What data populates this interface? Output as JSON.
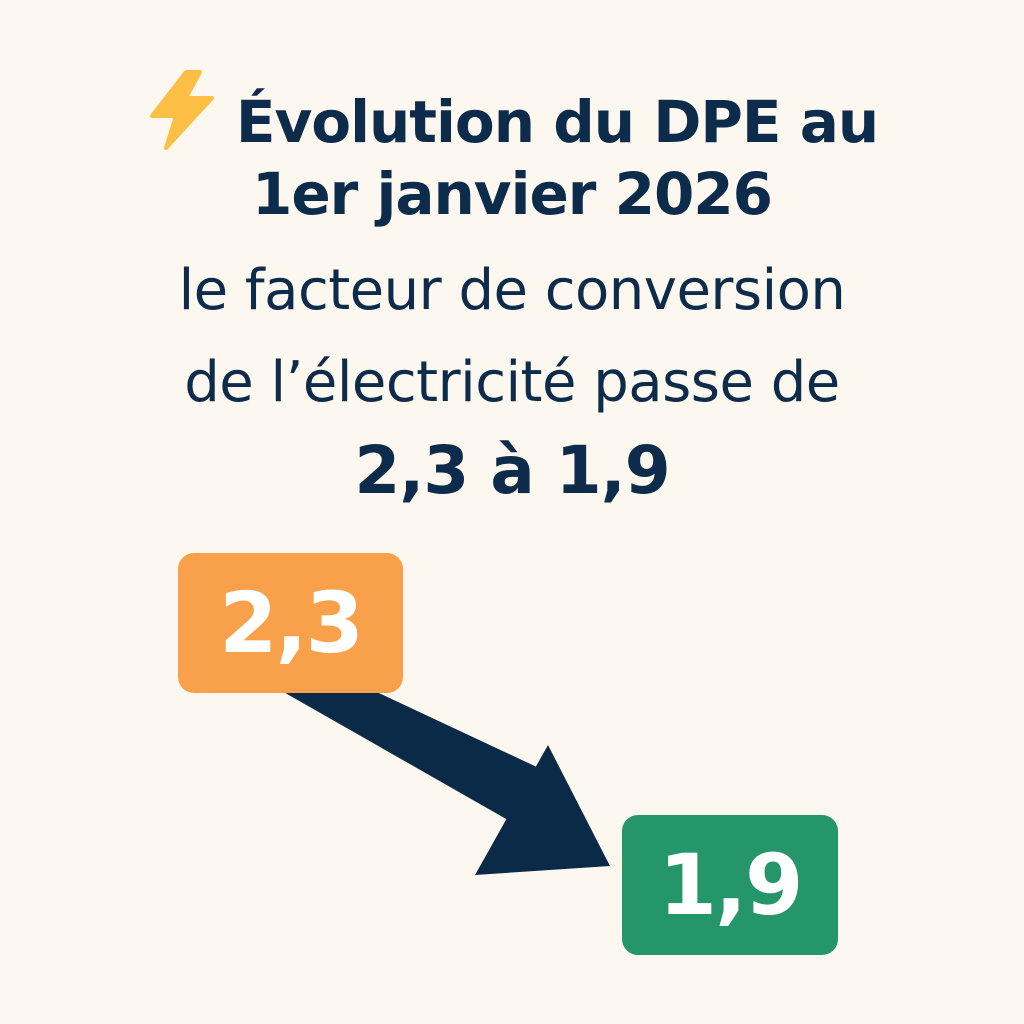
{
  "title": {
    "icon": "lightning-bolt-icon",
    "line1": "Évolution du DPE au",
    "line2": "1er janvier 2026"
  },
  "subtitle": {
    "line1": "le facteur de conversion",
    "line2": "de l’électricité passe de",
    "highlight": "2,3 à 1,9"
  },
  "diagram": {
    "old_value": "2,3",
    "new_value": "1,9",
    "arrow_icon": "arrow-down-right-icon"
  },
  "colors": {
    "background": "#fdf8ef",
    "text": "#0d2b4a",
    "bolt": "#fbbf45",
    "old": "#f9a04a",
    "new": "#25956a",
    "arrow": "#0b2a48"
  }
}
